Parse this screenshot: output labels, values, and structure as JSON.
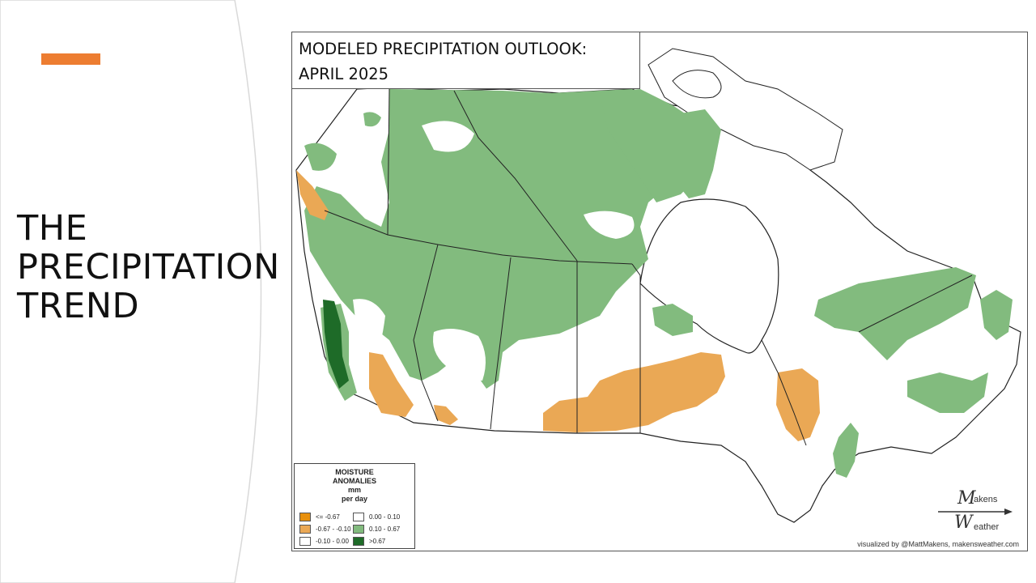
{
  "slide": {
    "title_lines": [
      "THE",
      "PRECIPITATION",
      "TREND"
    ],
    "accent_color": "#ed7d31"
  },
  "map": {
    "title_lines": [
      "MODELED PRECIPITATION OUTLOOK:",
      "APRIL 2025"
    ],
    "credit": "visualized by @MattMakens, makensweather.com",
    "logo_text_top": "akens",
    "logo_text_bottom": "eather",
    "logo_letter": "W"
  },
  "legend": {
    "title_lines": [
      "MOISTURE",
      "ANOMALIES",
      "mm",
      "per day"
    ],
    "items": [
      {
        "label": "<= -0.67",
        "color": "#e8900c"
      },
      {
        "label": "-0.67 - -0.10",
        "color": "#eaa855"
      },
      {
        "label": "-0.10 - 0.00",
        "color": "#ffffff"
      },
      {
        "label": "0.00 - 0.10",
        "color": "#ffffff"
      },
      {
        "label": "0.10 - 0.67",
        "color": "#82bb7e"
      },
      {
        "label": ">0.67",
        "color": "#1e6b28"
      }
    ]
  }
}
